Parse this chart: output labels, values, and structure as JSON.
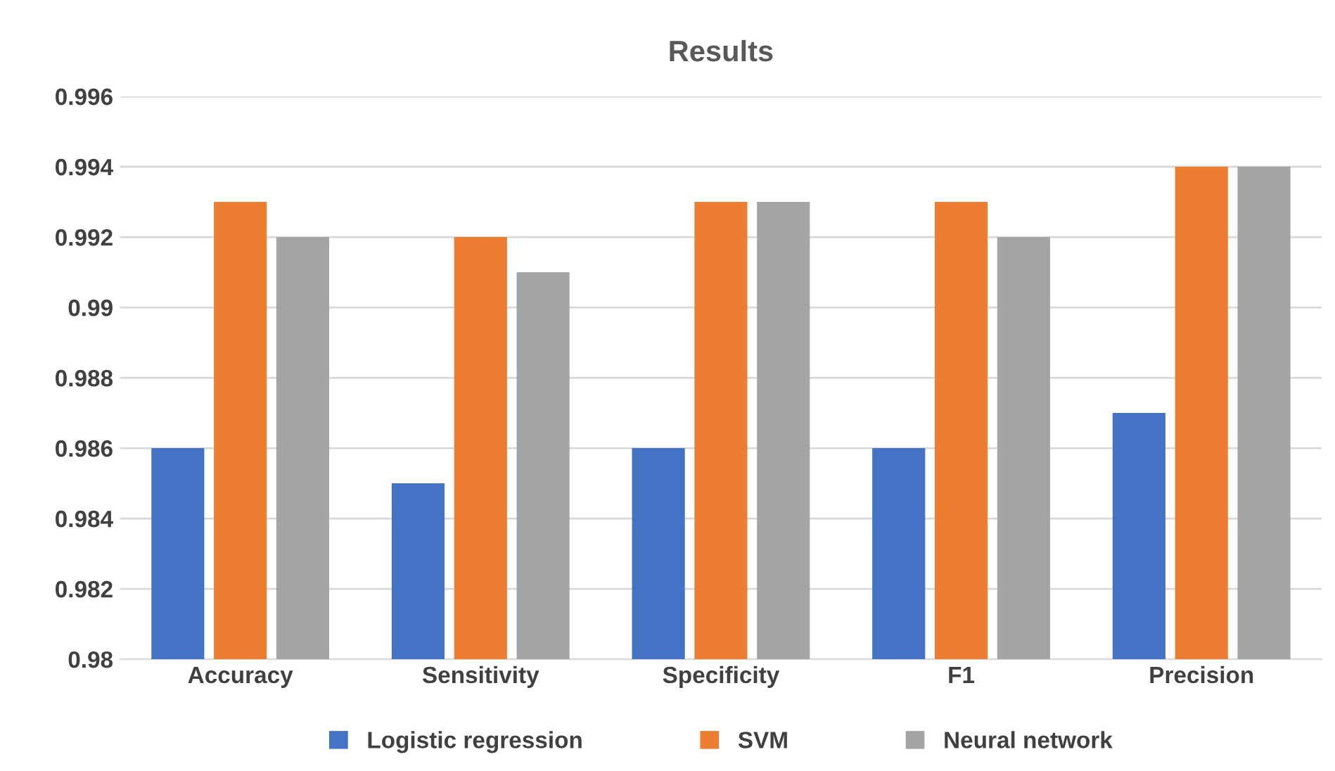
{
  "chart_data": {
    "type": "bar",
    "title": "Results",
    "categories": [
      "Accuracy",
      "Sensitivity",
      "Specificity",
      "F1",
      "Precision"
    ],
    "series": [
      {
        "name": "Logistic regression",
        "color": "#4472c4",
        "values": [
          0.986,
          0.985,
          0.986,
          0.986,
          0.987
        ]
      },
      {
        "name": "SVM",
        "color": "#ed7d31",
        "values": [
          0.993,
          0.992,
          0.993,
          0.993,
          0.994
        ]
      },
      {
        "name": "Neural network",
        "color": "#a5a5a5",
        "values": [
          0.992,
          0.991,
          0.993,
          0.992,
          0.994
        ]
      }
    ],
    "ylim": [
      0.98,
      0.996
    ],
    "yticks": [
      0.98,
      0.982,
      0.984,
      0.986,
      0.988,
      0.99,
      0.992,
      0.994,
      0.996
    ],
    "grid": "y",
    "legend": "bottom"
  }
}
